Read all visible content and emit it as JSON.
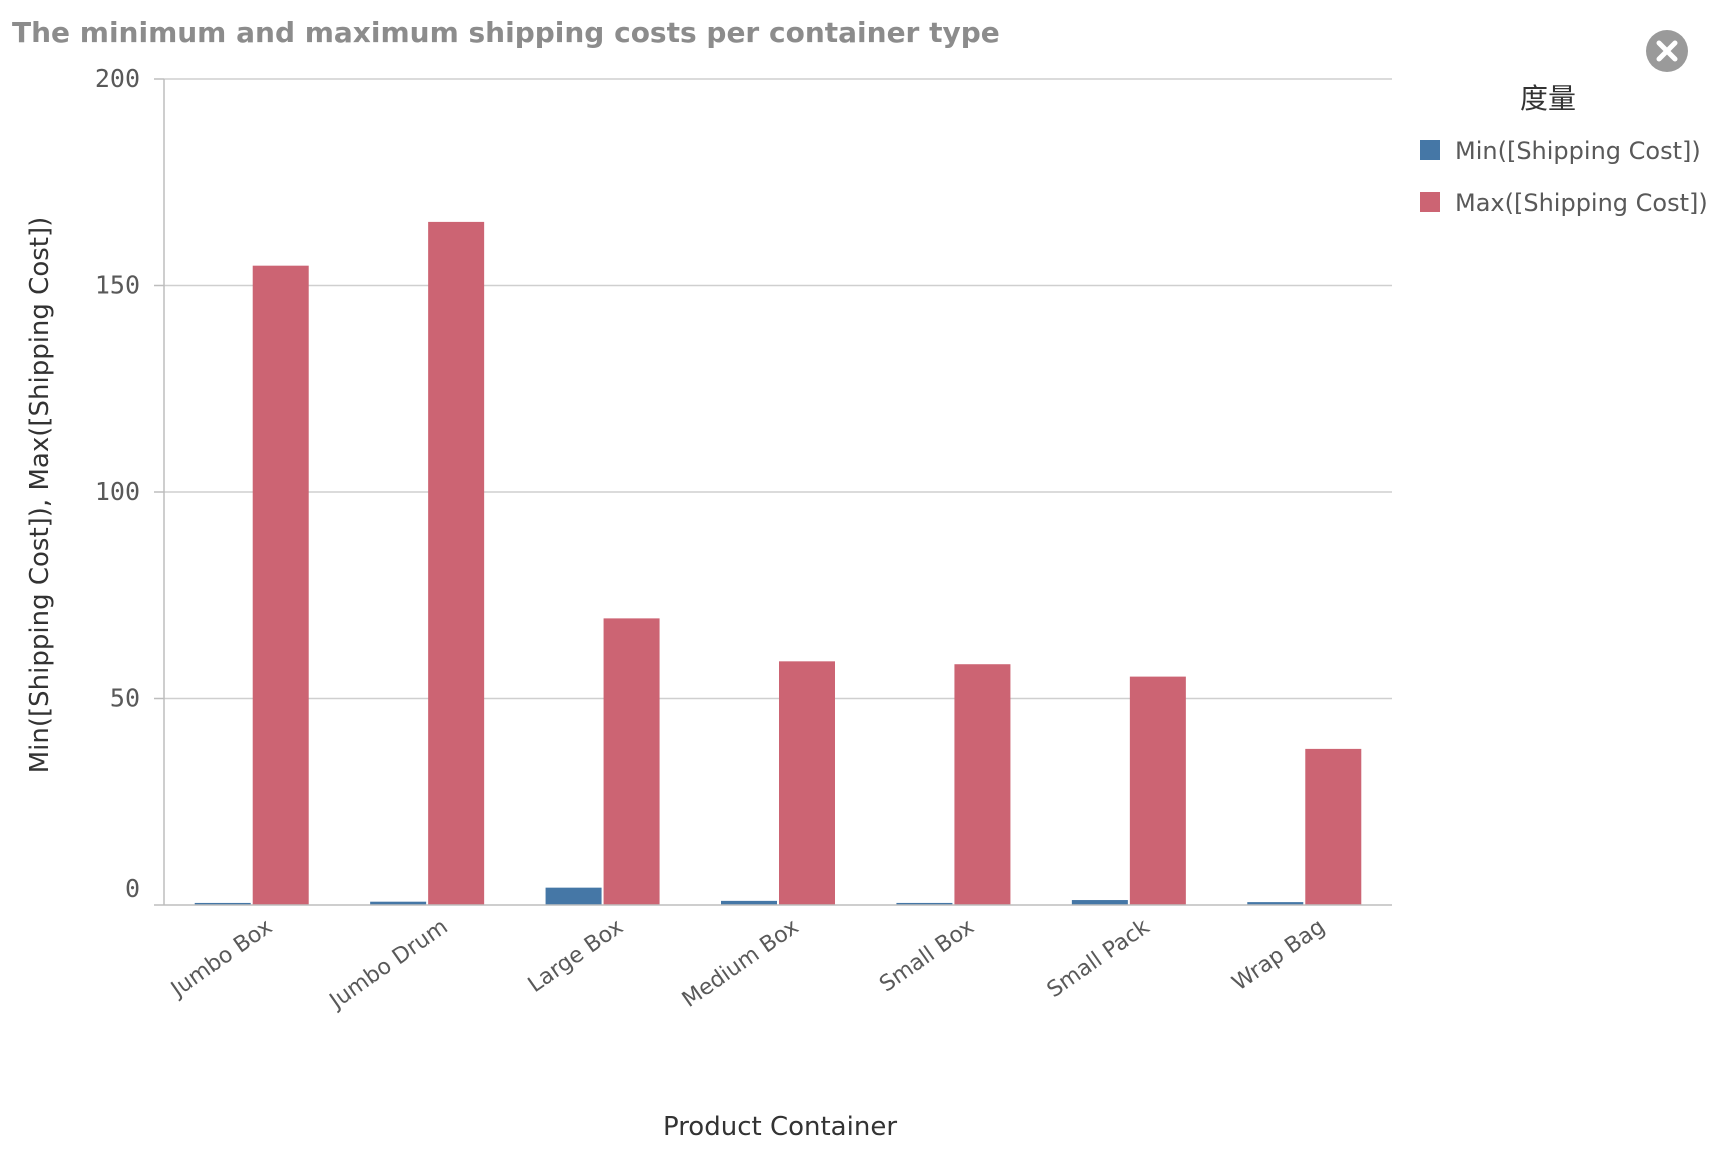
{
  "colors": {
    "min": "#4577a6",
    "max": "#cc6473",
    "grid": "#cfcfcf",
    "axis": "#bdbdbd",
    "text": "#595959"
  },
  "icons": {
    "close": "close-icon"
  },
  "legend": {
    "title": "度量",
    "items": [
      "Min([Shipping Cost])",
      "Max([Shipping Cost])"
    ]
  },
  "chart_data": {
    "type": "bar",
    "title": "The minimum and maximum shipping costs per container type",
    "xlabel": "Product Container",
    "ylabel": "Min([Shipping Cost]),  Max([Shipping Cost])",
    "categories": [
      "Jumbo Box",
      "Jumbo Drum",
      "Large Box",
      "Medium Box",
      "Small Box",
      "Small Pack",
      "Wrap Bag"
    ],
    "series": [
      {
        "name": "Min([Shipping Cost])",
        "values": [
          0.5,
          0.8,
          4.2,
          1.0,
          0.5,
          1.2,
          0.7
        ]
      },
      {
        "name": "Max([Shipping Cost])",
        "values": [
          154.8,
          165.4,
          69.4,
          59.0,
          58.3,
          55.3,
          37.8
        ]
      }
    ],
    "ylim": [
      0,
      200
    ],
    "yticks": [
      0,
      50,
      100,
      150,
      200
    ],
    "grid": true,
    "legend_position": "right"
  }
}
